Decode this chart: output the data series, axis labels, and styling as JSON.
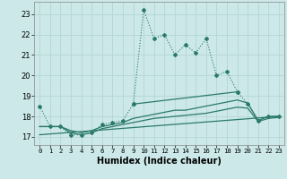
{
  "title": "",
  "xlabel": "Humidex (Indice chaleur)",
  "ylabel": "",
  "background_color": "#cce8e8",
  "grid_color": "#b8d8d8",
  "line_color": "#2a7a6a",
  "x_ticks": [
    0,
    1,
    2,
    3,
    4,
    5,
    6,
    7,
    8,
    9,
    10,
    11,
    12,
    13,
    14,
    15,
    16,
    17,
    18,
    19,
    20,
    21,
    22,
    23
  ],
  "y_ticks": [
    17,
    18,
    19,
    20,
    21,
    22,
    23
  ],
  "xlim": [
    -0.5,
    23.5
  ],
  "ylim": [
    16.6,
    23.6
  ],
  "series1_x": [
    0,
    1,
    2,
    3,
    4,
    5,
    6,
    7,
    8,
    9,
    10,
    11,
    12,
    13,
    14,
    15,
    16,
    17,
    18,
    19,
    20,
    21,
    22,
    23
  ],
  "series1_y": [
    18.5,
    17.5,
    17.5,
    17.1,
    17.1,
    17.2,
    17.6,
    17.7,
    17.8,
    18.6,
    23.2,
    21.8,
    22.0,
    21.0,
    21.5,
    21.1,
    21.8,
    20.0,
    20.2,
    19.2,
    18.6,
    17.8,
    18.0,
    18.0
  ],
  "series2_x": [
    0,
    1,
    2,
    3,
    4,
    5,
    6,
    7,
    8,
    9,
    10,
    11,
    12,
    13,
    14,
    15,
    16,
    17,
    18,
    19,
    20,
    21,
    22,
    23
  ],
  "series2_y": [
    17.5,
    17.5,
    17.5,
    17.3,
    17.2,
    17.3,
    17.5,
    17.6,
    17.7,
    17.9,
    18.0,
    18.1,
    18.2,
    18.3,
    18.3,
    18.4,
    18.5,
    18.6,
    18.7,
    18.8,
    18.65,
    17.8,
    18.0,
    18.0
  ],
  "series3_x": [
    0,
    1,
    2,
    3,
    4,
    5,
    6,
    7,
    8,
    9,
    10,
    11,
    12,
    13,
    14,
    15,
    16,
    17,
    18,
    19,
    20,
    21,
    22,
    23
  ],
  "series3_y": [
    17.5,
    17.5,
    17.5,
    17.2,
    17.1,
    17.2,
    17.4,
    17.5,
    17.6,
    17.7,
    17.8,
    17.9,
    17.95,
    18.0,
    18.05,
    18.1,
    18.15,
    18.25,
    18.35,
    18.45,
    18.4,
    17.75,
    17.9,
    17.95
  ],
  "series4_x": [
    0,
    23
  ],
  "series4_y": [
    17.1,
    18.0
  ],
  "series5_x": [
    9,
    19
  ],
  "series5_y": [
    18.6,
    19.2
  ]
}
